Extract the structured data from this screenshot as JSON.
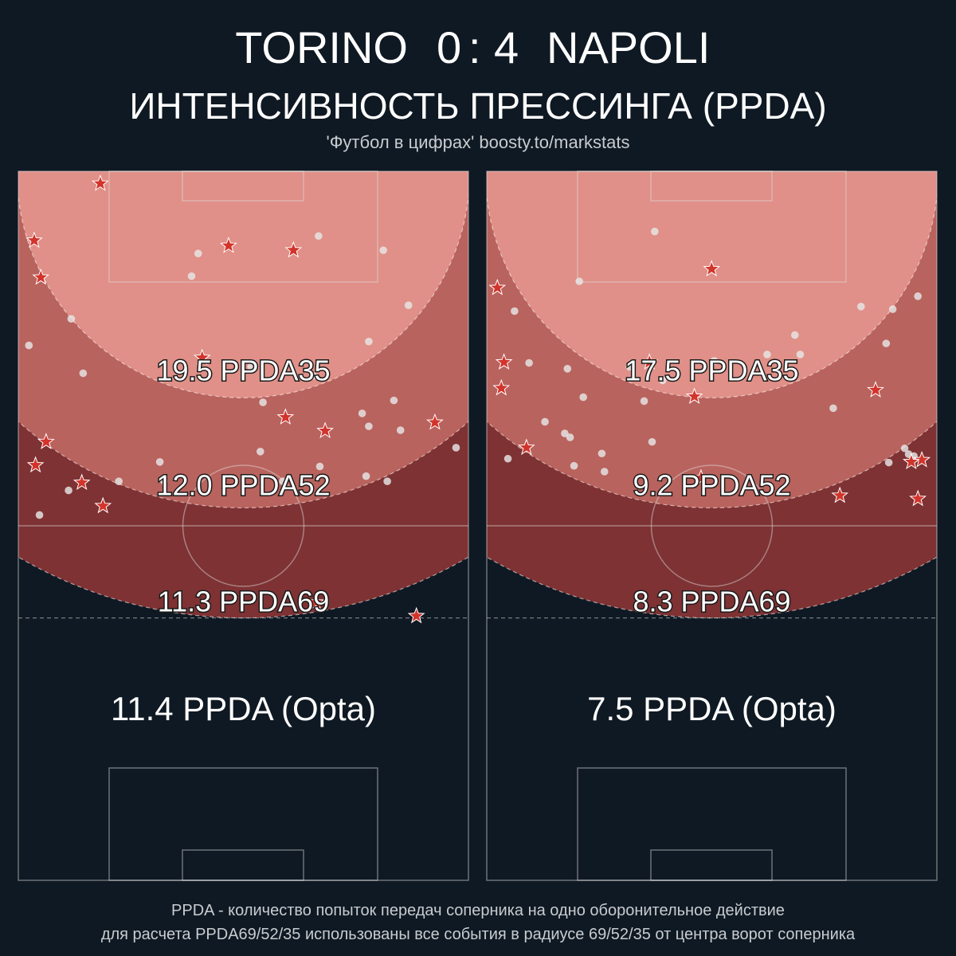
{
  "header": {
    "home_team": "TORINO",
    "home_score": "0",
    "separator": ":",
    "away_score": "4",
    "away_team": "NAPOLI",
    "title": "ИНТЕНСИВНОСТЬ ПРЕССИНГА (PPDA)",
    "subtitle": "'Футбол в цифрах' boosty.to/markstats"
  },
  "colors": {
    "background": "#0f1923",
    "zone35": "#e09088",
    "zone52": "#b9635e",
    "zone69": "#7e3233",
    "marker_star": "#d2342c",
    "marker_dot": "#e6e6e6"
  },
  "chart_data": [
    {
      "type": "scatter",
      "team": "TORINO",
      "zones": [
        {
          "label": "19.5 PPDA35",
          "radius": 35,
          "value": 19.5
        },
        {
          "label": "12.0 PPDA52",
          "radius": 52,
          "value": 12.0
        },
        {
          "label": "11.3 PPDA69",
          "radius": 69,
          "value": 11.3
        }
      ],
      "opta": {
        "label": "11.4 PPDA (Opta)",
        "value": 11.4
      },
      "defensive_actions": [
        [
          6.2,
          1.9
        ],
        [
          1.2,
          10.7
        ],
        [
          1.7,
          16.4
        ],
        [
          15.9,
          11.5
        ],
        [
          2.1,
          41.8
        ],
        [
          13.9,
          28.8
        ],
        [
          6.4,
          51.7
        ],
        [
          1.3,
          45.4
        ],
        [
          4.8,
          48.1
        ],
        [
          20.2,
          38.0
        ],
        [
          20.8,
          12.2
        ],
        [
          30.1,
          68.7
        ],
        [
          22.5,
          66.6
        ],
        [
          23.2,
          40.1
        ],
        [
          31.5,
          38.8
        ]
      ],
      "opponent_passes": [
        [
          22.7,
          10.0
        ],
        [
          13.6,
          12.7
        ],
        [
          4.0,
          22.8
        ],
        [
          1.6,
          53.1
        ],
        [
          7.6,
          47.9
        ],
        [
          0.8,
          26.9
        ],
        [
          4.9,
          31.2
        ],
        [
          17.6,
          30.2
        ],
        [
          18.3,
          43.3
        ],
        [
          27.6,
          12.2
        ],
        [
          29.5,
          20.7
        ],
        [
          22.3,
          31.6
        ],
        [
          26.5,
          26.3
        ],
        [
          13.1,
          16.2
        ],
        [
          18.5,
          35.7
        ],
        [
          28.4,
          35.4
        ],
        [
          26.0,
          37.4
        ],
        [
          22.8,
          45.6
        ],
        [
          26.3,
          47.1
        ],
        [
          28.9,
          40.0
        ],
        [
          26.5,
          39.4
        ],
        [
          11.0,
          47.8
        ],
        [
          10.7,
          44.9
        ],
        [
          3.8,
          49.3
        ],
        [
          33.1,
          42.7
        ],
        [
          27.9,
          47.9
        ],
        [
          20.0,
          47.9
        ]
      ]
    },
    {
      "type": "scatter",
      "team": "NAPOLI",
      "zones": [
        {
          "label": "17.5 PPDA35",
          "radius": 35,
          "value": 17.5
        },
        {
          "label": "9.2 PPDA52",
          "radius": 52,
          "value": 9.2
        },
        {
          "label": "8.3 PPDA69",
          "radius": 69,
          "value": 8.3
        }
      ],
      "opta": {
        "label": "7.5 PPDA (Opta)",
        "value": 7.5
      },
      "defensive_actions": [
        [
          17.0,
          15.1
        ],
        [
          0.8,
          18.0
        ],
        [
          1.3,
          29.5
        ],
        [
          1.1,
          33.5
        ],
        [
          12.3,
          29.5
        ],
        [
          15.7,
          34.8
        ],
        [
          3.0,
          42.7
        ],
        [
          16.2,
          47.4
        ],
        [
          29.4,
          33.8
        ],
        [
          32.9,
          44.6
        ],
        [
          32.6,
          50.6
        ],
        [
          26.7,
          50.1
        ],
        [
          32.1,
          44.9
        ]
      ],
      "opponent_passes": [
        [
          12.7,
          9.3
        ],
        [
          7.0,
          17.0
        ],
        [
          2.1,
          21.6
        ],
        [
          3.2,
          29.6
        ],
        [
          6.1,
          30.5
        ],
        [
          10.8,
          30.2
        ],
        [
          13.3,
          32.3
        ],
        [
          7.3,
          34.9
        ],
        [
          11.9,
          35.5
        ],
        [
          17.2,
          29.3
        ],
        [
          21.2,
          28.3
        ],
        [
          23.7,
          28.3
        ],
        [
          23.3,
          25.3
        ],
        [
          26.2,
          36.6
        ],
        [
          28.3,
          20.9
        ],
        [
          30.2,
          26.6
        ],
        [
          30.7,
          21.3
        ],
        [
          32.6,
          19.3
        ],
        [
          31.9,
          43.7
        ],
        [
          32.3,
          44.0
        ],
        [
          30.4,
          45.0
        ],
        [
          31.6,
          42.8
        ],
        [
          8.7,
          43.6
        ],
        [
          12.5,
          41.8
        ],
        [
          4.4,
          38.7
        ],
        [
          6.6,
          45.5
        ],
        [
          1.6,
          44.4
        ],
        [
          8.9,
          46.4
        ],
        [
          6.3,
          41.1
        ],
        [
          5.9,
          40.5
        ]
      ]
    }
  ],
  "footnotes": {
    "line1": "PPDA - количество попыток передач соперника на одно оборонительное действие",
    "line2": "для расчета PPDA69/52/35 использованы все события в радиусе 69/52/35 от центра ворот соперника"
  }
}
